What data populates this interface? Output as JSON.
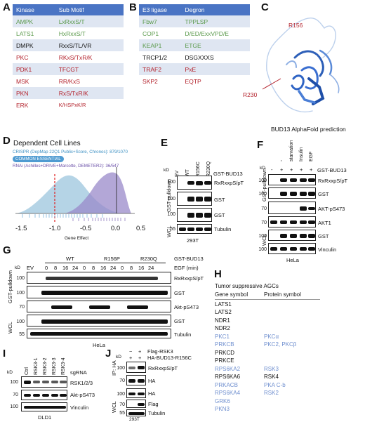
{
  "panels": {
    "a": "A",
    "b": "B",
    "c": "C",
    "d": "D",
    "e": "E",
    "f": "F",
    "g": "G",
    "h": "H",
    "i": "I",
    "j": "J"
  },
  "table_a": {
    "headers": [
      "Kinase",
      "Sub Motif"
    ],
    "rows": [
      {
        "k": "AMPK",
        "m": "LxRxxS/T",
        "color": "#5b9a4c"
      },
      {
        "k": "LATS1",
        "m": "HxRxxS/T",
        "color": "#5b9a4c"
      },
      {
        "k": "DMPK",
        "m": "RxxS/TL/VR",
        "color": "#111111"
      },
      {
        "k": "PKC",
        "m": "RKxS/TxR/K",
        "color": "#b3212b"
      },
      {
        "k": "PDK1",
        "m": "TFCGT",
        "color": "#b3212b"
      },
      {
        "k": "MSK",
        "m": "RR/KxS",
        "color": "#b3212b"
      },
      {
        "k": "PKN",
        "m": "RxS/TxR/K",
        "color": "#b3212b"
      },
      {
        "k": "ERK",
        "m": "K/HSPxK/R",
        "color": "#b3212b"
      }
    ]
  },
  "table_b": {
    "headers": [
      "E3 ligase",
      "Degron"
    ],
    "rows": [
      {
        "k": "Fbw7",
        "m": "TPPLSP",
        "color": "#5b9a4c"
      },
      {
        "k": "COP1",
        "m": "D/ED/ExxVPD/E",
        "color": "#5b9a4c"
      },
      {
        "k": "KEAP1",
        "m": "ETGE",
        "color": "#5b9a4c"
      },
      {
        "k": "TRCP1/2",
        "m": "DSGXXXS",
        "color": "#111111"
      },
      {
        "k": "TRAF2",
        "m": "PxE",
        "color": "#b3212b"
      },
      {
        "k": "SKP2",
        "m": "EQTP",
        "color": "#b3212b"
      }
    ]
  },
  "panel_c": {
    "r156": "R156",
    "r230": "R230",
    "caption": "BUD13 AlphaFold prediction"
  },
  "panel_d": {
    "title": "Dependent Cell Lines",
    "crispr": "CRISPR (DepMap 22Q1 Public+Score, Chronos): 879/1070",
    "badge": "COMMON ESSENTIAL",
    "rnai": "RNAi (Achilles+DRIVE+Marcotte, DEMETER2): 36/547",
    "xlabel": "Gene Effect",
    "ticks": [
      "-1.5",
      "-1.0",
      "-0.5",
      "0.0",
      "0.5"
    ],
    "crispr_color": "#9cc5de",
    "rnai_color": "#9a89c9"
  },
  "panel_e": {
    "kd": "kD",
    "lanes": [
      "EV",
      "WT",
      "R156C",
      "R230Q"
    ],
    "top": "GST-BUD13",
    "pulldown": "GST-pulldown",
    "wcl": "WCL",
    "blots": [
      {
        "mw": "100",
        "label": "RxRxxpS/pT"
      },
      {
        "mw": "100",
        "label": "GST"
      },
      {
        "mw": "100",
        "label": "GST"
      },
      {
        "mw": "55",
        "label": "Tubulin"
      }
    ],
    "cell": "293T"
  },
  "panel_f": {
    "kd": "kD",
    "lanes": [
      "-",
      "starvation",
      "Insulin",
      "EGF"
    ],
    "signs": [
      "-",
      "+",
      "+",
      "+",
      "+"
    ],
    "top": "GST-BUD13",
    "pulldown": "GST-pulldown",
    "wcl": "WCL",
    "blots": [
      {
        "mw": "100",
        "label": "RxRxxpS/pT"
      },
      {
        "mw": "100",
        "label": "GST"
      },
      {
        "mw": "70",
        "label": "AKT-pS473"
      },
      {
        "mw": "70",
        "label": "AKT1"
      },
      {
        "mw": "100",
        "label": "GST"
      },
      {
        "mw": "100",
        "label": "Vinculin"
      }
    ],
    "cell": "HeLa"
  },
  "panel_g": {
    "kd": "kD",
    "groups": [
      "WT",
      "R156P",
      "R230Q"
    ],
    "ev": "EV",
    "times": [
      "0",
      "8",
      "16",
      "24",
      "0",
      "8",
      "16",
      "24",
      "0",
      "8",
      "16",
      "24"
    ],
    "top1": "GST-BUD13",
    "top2": "EGF (min)",
    "pulldown": "GST-pulldown",
    "wcl": "WCL",
    "blots": [
      {
        "mw": "100",
        "label": "RxRxxpS/pT"
      },
      {
        "mw": "100",
        "label": "GST"
      },
      {
        "mw": "70",
        "label": "Akt-pS473"
      },
      {
        "mw": "100",
        "label": "GST"
      },
      {
        "mw": "55",
        "label": "Tubulin"
      }
    ],
    "cell": "HeLa"
  },
  "panel_h": {
    "title": "Tumor suppressive AGCs",
    "col1": "Gene symbol",
    "col2": "Protein symbol",
    "rows": [
      {
        "g": "LATS1",
        "p": "",
        "blue": false
      },
      {
        "g": "LATS2",
        "p": "",
        "blue": false
      },
      {
        "g": "NDR1",
        "p": "",
        "blue": false
      },
      {
        "g": "NDR2",
        "p": "",
        "blue": false
      },
      {
        "g": "PKC1",
        "p": "PKCα",
        "blue": true
      },
      {
        "g": "PRKCB",
        "p": "PKC2, PKCβ",
        "blue": true
      },
      {
        "g": "PRKCD",
        "p": "",
        "blue": false
      },
      {
        "g": "PRKCE",
        "p": "",
        "blue": false
      },
      {
        "g": "RPS6KA2",
        "p": "RSK3",
        "blue": true
      },
      {
        "g": "RPS6KA6",
        "p": "RSK4",
        "blue": false
      },
      {
        "g": "PRKACB",
        "p": "PKA C-b",
        "blue": true
      },
      {
        "g": "RPS6KA4",
        "p": "RSK2",
        "blue": true
      },
      {
        "g": "GRK6",
        "p": "",
        "blue": true
      },
      {
        "g": "PKN3",
        "p": "",
        "blue": true
      }
    ]
  },
  "panel_i": {
    "kd": "kD",
    "lanes": [
      "Ctrl",
      "RSK3-1",
      "RSK3-2",
      "RSK3-3",
      "RSK3-4"
    ],
    "sg": "sgRNA",
    "blots": [
      {
        "mw": "100",
        "label": "RSK1/2/3"
      },
      {
        "mw": "70",
        "label": "Akt-pS473"
      },
      {
        "mw": "100",
        "label": "Vinculin"
      }
    ],
    "cell": "DLD1"
  },
  "panel_j": {
    "kd": "kD",
    "signs1": [
      "−",
      "+"
    ],
    "signs2": [
      "+",
      "+"
    ],
    "top1": "Flag-RSK3",
    "top2": "HA-BUD13-R156C",
    "ip": "IP: HA",
    "wcl": "WCL",
    "blots": [
      {
        "mw": "100",
        "label": "RxRxxpS/pT"
      },
      {
        "mw": "70",
        "label": "HA"
      },
      {
        "mw": "100",
        "label": "HA"
      },
      {
        "mw": "70",
        "label": "Flag"
      },
      {
        "mw": "55",
        "label": "Tubulin"
      }
    ],
    "cell": "293T"
  }
}
